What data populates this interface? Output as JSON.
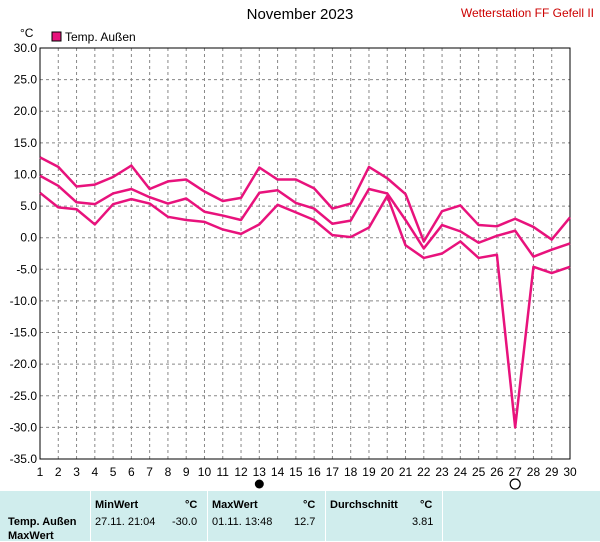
{
  "header": {
    "title": "November 2023",
    "station": "Wetterstation FF Gefell II"
  },
  "chart_data": {
    "type": "line",
    "title": "November 2023",
    "ylabel": "°C",
    "ylim": [
      -35,
      30
    ],
    "yticks": [
      "30.0",
      "25.0",
      "20.0",
      "15.0",
      "10.0",
      "5.0",
      "0.0",
      "-5.0",
      "-10.0",
      "-15.0",
      "-20.0",
      "-25.0",
      "-30.0",
      "-35.0"
    ],
    "x": [
      1,
      2,
      3,
      4,
      5,
      6,
      7,
      8,
      9,
      10,
      11,
      12,
      13,
      14,
      15,
      16,
      17,
      18,
      19,
      20,
      21,
      22,
      23,
      24,
      25,
      26,
      27,
      28,
      29,
      30
    ],
    "grid": true,
    "legend": "Temp. Außen",
    "color": "#e8127c",
    "series": [
      {
        "values": [
          12.7,
          11.2,
          8.1,
          8.4,
          9.6,
          11.4,
          7.7,
          8.9,
          9.2,
          7.3,
          5.8,
          6.3,
          11.1,
          9.2,
          9.2,
          7.8,
          4.6,
          5.4,
          11.2,
          9.4,
          6.9,
          -0.6,
          4.2,
          5.1,
          2.0,
          1.8,
          3.0,
          1.7,
          -0.3,
          3.2
        ]
      },
      {
        "values": [
          9.8,
          8.2,
          5.6,
          5.3,
          7.0,
          7.7,
          6.4,
          5.4,
          6.2,
          4.1,
          3.5,
          2.8,
          7.1,
          7.5,
          5.5,
          4.6,
          2.2,
          2.7,
          7.7,
          7.0,
          2.8,
          -1.7,
          2.0,
          1.0,
          -0.8,
          0.3,
          1.1,
          -3.0,
          -1.9,
          -0.9
        ]
      },
      {
        "values": [
          7.1,
          4.8,
          4.5,
          2.1,
          5.3,
          6.1,
          5.4,
          3.3,
          2.8,
          2.5,
          1.3,
          0.6,
          2.1,
          5.2,
          4.0,
          2.8,
          0.4,
          0.1,
          1.6,
          6.6,
          -1.2,
          -3.2,
          -2.5,
          -0.6,
          -3.2,
          -2.7,
          -30.0,
          -4.6,
          -5.6,
          -4.6
        ]
      }
    ],
    "markers": {
      "full_moon_day": 13,
      "new_moon_day": 27
    }
  },
  "stats": {
    "header_min": "MinWert",
    "header_max": "MaxWert",
    "header_avg": "Durchschnitt",
    "unit": "°C",
    "row_label": "Temp. Außen",
    "min_time": "27.11.  21:04",
    "min_value": "-30.0",
    "max_time": "01.11.  13:48",
    "max_value": "12.7",
    "avg_value": "3.81",
    "next_row_label": "MaxWert"
  }
}
